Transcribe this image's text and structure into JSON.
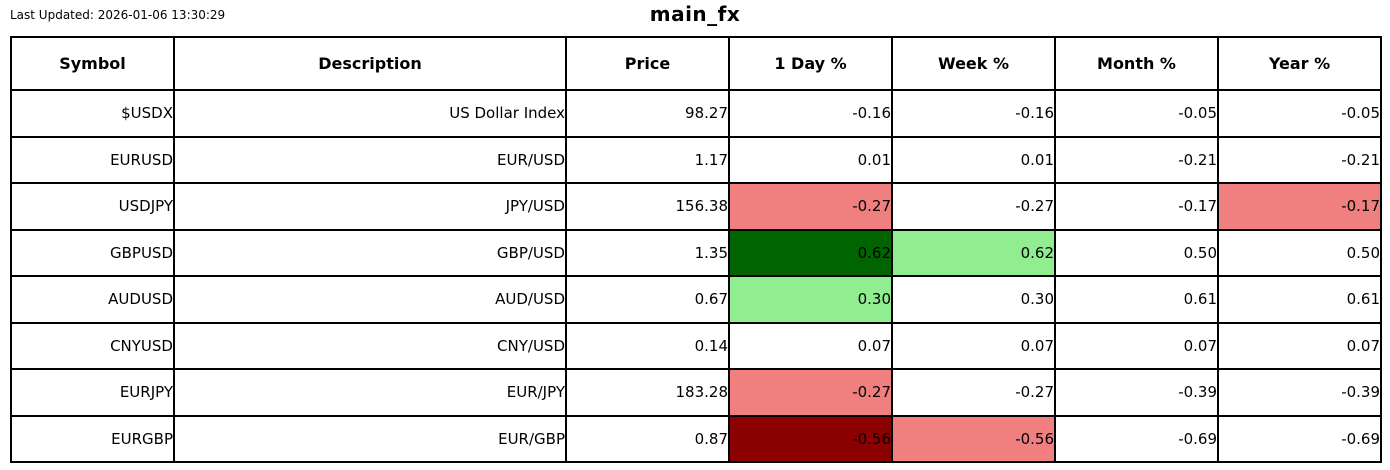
{
  "figure": {
    "last_updated": "Last Updated: 2026-01-06 13:30:29",
    "title": "main_fx"
  },
  "colors": {
    "dark_green": "#006400",
    "light_green": "#90EE90",
    "dark_red": "#8B0000",
    "light_red": "#F08080",
    "cell_default": "#FFFFFF",
    "border": "#000000",
    "text": "#000000"
  },
  "chart_data": {
    "type": "table",
    "title": "main_fx",
    "annotation": "Last Updated: 2026-01-06 13:30:29",
    "columns": [
      "Symbol",
      "Description",
      "Price",
      "1 Day %",
      "Week %",
      "Month %",
      "Year %"
    ],
    "rows": [
      {
        "symbol": "$USDX",
        "description": "US Dollar Index",
        "price": 98.27,
        "day": -0.16,
        "week": -0.16,
        "month": -0.05,
        "year": -0.05,
        "bg": {}
      },
      {
        "symbol": "EURUSD",
        "description": "EUR/USD",
        "price": 1.17,
        "day": 0.01,
        "week": 0.01,
        "month": -0.21,
        "year": -0.21,
        "bg": {}
      },
      {
        "symbol": "USDJPY",
        "description": "JPY/USD",
        "price": 156.38,
        "day": -0.27,
        "week": -0.27,
        "month": -0.17,
        "year": -0.17,
        "bg": {
          "day": "light_red",
          "year": "light_red"
        }
      },
      {
        "symbol": "GBPUSD",
        "description": "GBP/USD",
        "price": 1.35,
        "day": 0.62,
        "week": 0.62,
        "month": 0.5,
        "year": 0.5,
        "bg": {
          "day": "dark_green",
          "week": "light_green"
        }
      },
      {
        "symbol": "AUDUSD",
        "description": "AUD/USD",
        "price": 0.67,
        "day": 0.3,
        "week": 0.3,
        "month": 0.61,
        "year": 0.61,
        "bg": {
          "day": "light_green"
        }
      },
      {
        "symbol": "CNYUSD",
        "description": "CNY/USD",
        "price": 0.14,
        "day": 0.07,
        "week": 0.07,
        "month": 0.07,
        "year": 0.07,
        "bg": {}
      },
      {
        "symbol": "EURJPY",
        "description": "EUR/JPY",
        "price": 183.28,
        "day": -0.27,
        "week": -0.27,
        "month": -0.39,
        "year": -0.39,
        "bg": {
          "day": "light_red"
        }
      },
      {
        "symbol": "EURGBP",
        "description": "EUR/GBP",
        "price": 0.87,
        "day": -0.56,
        "week": -0.56,
        "month": -0.69,
        "year": -0.69,
        "bg": {
          "day": "dark_red",
          "week": "light_red"
        }
      }
    ]
  }
}
